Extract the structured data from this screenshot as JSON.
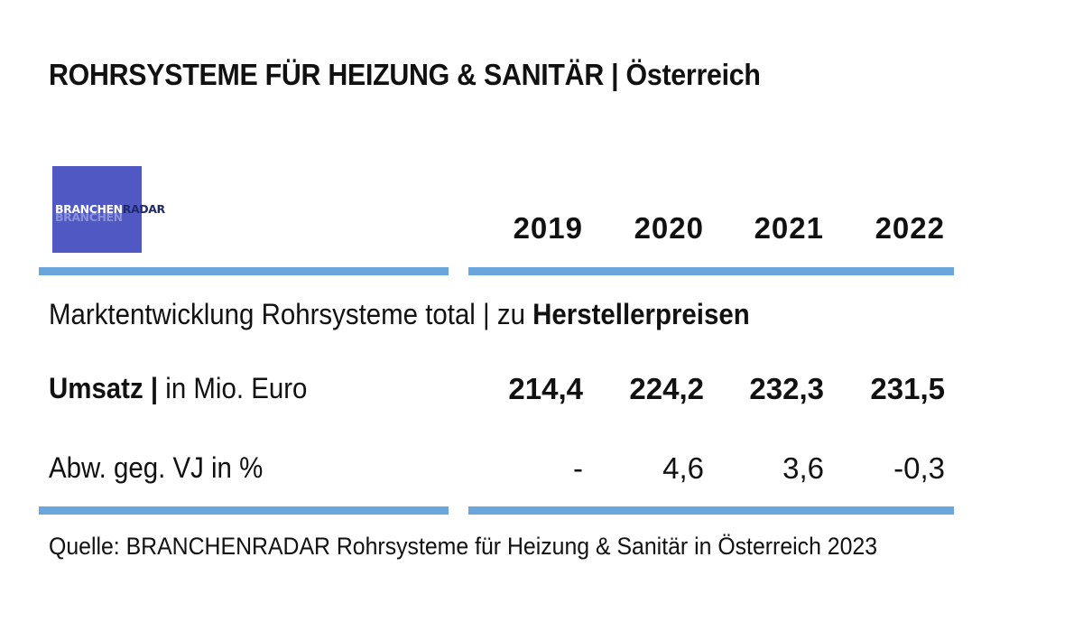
{
  "title": "ROHRSYSTEME FÜR HEIZUNG & SANITÄR | Österreich",
  "logo": {
    "part1": "BRANCHEN",
    "part2": "RADAR",
    "background_color": "#5058c4"
  },
  "accent_color": "#6aa5dc",
  "years": [
    "2019",
    "2020",
    "2021",
    "2022"
  ],
  "section": {
    "prefix": "Marktentwicklung Rohrsysteme total | zu ",
    "bold": "Herstellerpreisen"
  },
  "rows": {
    "umsatz": {
      "label_bold": "Umsatz |",
      "label_rest": " in Mio. Euro",
      "values": [
        "214,4",
        "224,2",
        "232,3",
        "231,5"
      ]
    },
    "abw": {
      "label": "Abw. geg. VJ in %",
      "values": [
        "-",
        "4,6",
        "3,6",
        "-0,3"
      ]
    }
  },
  "source": "Quelle: BRANCHENRADAR Rohrsysteme für Heizung & Sanitär in Österreich 2023"
}
